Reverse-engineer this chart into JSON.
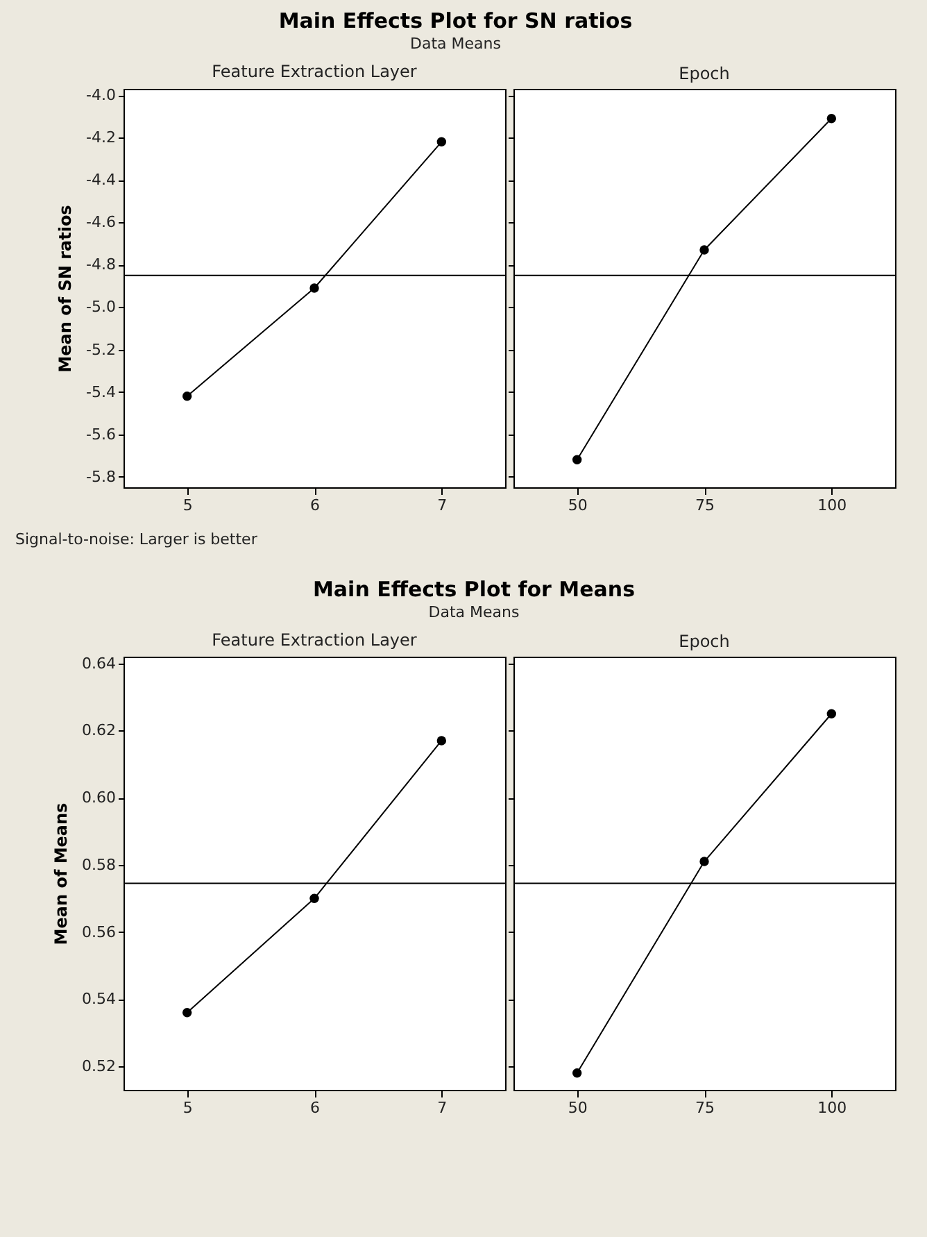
{
  "chart_data": [
    {
      "type": "line",
      "title": "Main Effects Plot for SN ratios",
      "subtitle": "Data Means",
      "xlabel": "Feature Extraction Layer",
      "ylabel": "Mean of SN ratios",
      "categories": [
        "5",
        "6",
        "7"
      ],
      "values": [
        -5.42,
        -4.91,
        -4.22
      ],
      "color": "#000000",
      "marker": "circle",
      "line_style": "solid",
      "ylim": [
        -5.85,
        -3.97
      ],
      "yticks": [
        -5.8,
        -5.6,
        -5.4,
        -5.2,
        {
          "value": -5,
          "label": "-5.0"
        },
        -4.8,
        -4.6,
        -4.4,
        -4.2,
        {
          "value": -4,
          "label": "-4.0"
        }
      ],
      "ref_lines": [
        {
          "axis": "y",
          "value": -4.85,
          "color": "#000000"
        }
      ],
      "annotations": [
        "Signal-to-noise: Larger is better"
      ]
    },
    {
      "type": "line",
      "xlabel": "Epoch",
      "categories": [
        "50",
        "75",
        "100"
      ],
      "values": [
        -5.72,
        -4.73,
        -4.11
      ],
      "color": "#000000",
      "marker": "circle",
      "line_style": "solid",
      "ylim": [
        -5.85,
        -3.97
      ],
      "yticks": [
        -5.8,
        -5.6,
        -5.4,
        -5.2,
        -5,
        -4.8,
        -4.6,
        -4.4,
        -4.2,
        -4
      ],
      "tick_labels": "x",
      "ref_lines": [
        {
          "axis": "y",
          "value": -4.85,
          "color": "#000000"
        }
      ]
    },
    {
      "type": "line",
      "title": "Main Effects Plot for Means",
      "subtitle": "Data Means",
      "xlabel": "Feature Extraction Layer",
      "ylabel": "Mean of Means",
      "categories": [
        "5",
        "6",
        "7"
      ],
      "values": [
        0.536,
        0.57,
        0.617
      ],
      "color": "#000000",
      "marker": "circle",
      "line_style": "solid",
      "ylim": [
        0.513,
        0.642
      ],
      "yticks": [
        0.52,
        0.54,
        0.56,
        0.58,
        {
          "value": 0.6,
          "label": "0.60"
        },
        0.62,
        0.64
      ],
      "ref_lines": [
        {
          "axis": "y",
          "value": 0.5745,
          "color": "#000000"
        }
      ]
    },
    {
      "type": "line",
      "xlabel": "Epoch",
      "categories": [
        "50",
        "75",
        "100"
      ],
      "values": [
        0.518,
        0.581,
        0.625
      ],
      "color": "#000000",
      "marker": "circle",
      "line_style": "solid",
      "ylim": [
        0.513,
        0.642
      ],
      "yticks": [
        0.52,
        0.54,
        0.56,
        0.58,
        0.6,
        0.62,
        0.64
      ],
      "tick_labels": "x",
      "ref_lines": [
        {
          "axis": "y",
          "value": 0.5745,
          "color": "#000000"
        }
      ]
    }
  ]
}
